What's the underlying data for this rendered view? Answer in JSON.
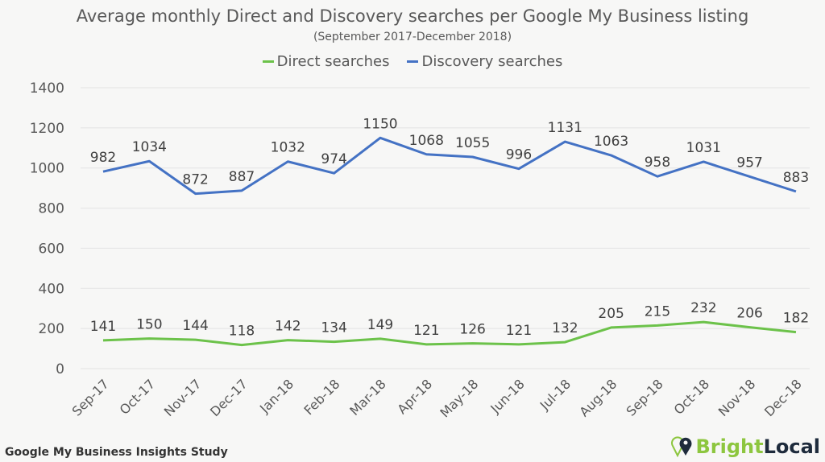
{
  "chart_data": {
    "type": "line",
    "title": "Average monthly Direct and Discovery searches per Google My Business listing",
    "subtitle": "(September 2017-December 2018)",
    "xlabel": "",
    "ylabel": "",
    "categories": [
      "Sep-17",
      "Oct-17",
      "Nov-17",
      "Dec-17",
      "Jan-18",
      "Feb-18",
      "Mar-18",
      "Apr-18",
      "May-18",
      "Jun-18",
      "Jul-18",
      "Aug-18",
      "Sep-18",
      "Oct-18",
      "Nov-18",
      "Dec-18"
    ],
    "series": [
      {
        "name": "Direct searches",
        "color": "#6cc24a",
        "values": [
          141,
          150,
          144,
          118,
          142,
          134,
          149,
          121,
          126,
          121,
          132,
          205,
          215,
          232,
          206,
          182
        ]
      },
      {
        "name": "Discovery searches",
        "color": "#4472c4",
        "values": [
          982,
          1034,
          872,
          887,
          1032,
          974,
          1150,
          1068,
          1055,
          996,
          1131,
          1063,
          958,
          1031,
          957,
          883
        ]
      }
    ],
    "ylim": [
      0,
      1400
    ],
    "yticks": [
      0,
      200,
      400,
      600,
      800,
      1000,
      1200,
      1400
    ],
    "grid": true,
    "legend": "top"
  },
  "footer": "Google My Business Insights Study",
  "logo": {
    "bright": "Bright",
    "local": "Local",
    "bright_color": "#8dc63f",
    "local_color": "#1e2b3c"
  }
}
